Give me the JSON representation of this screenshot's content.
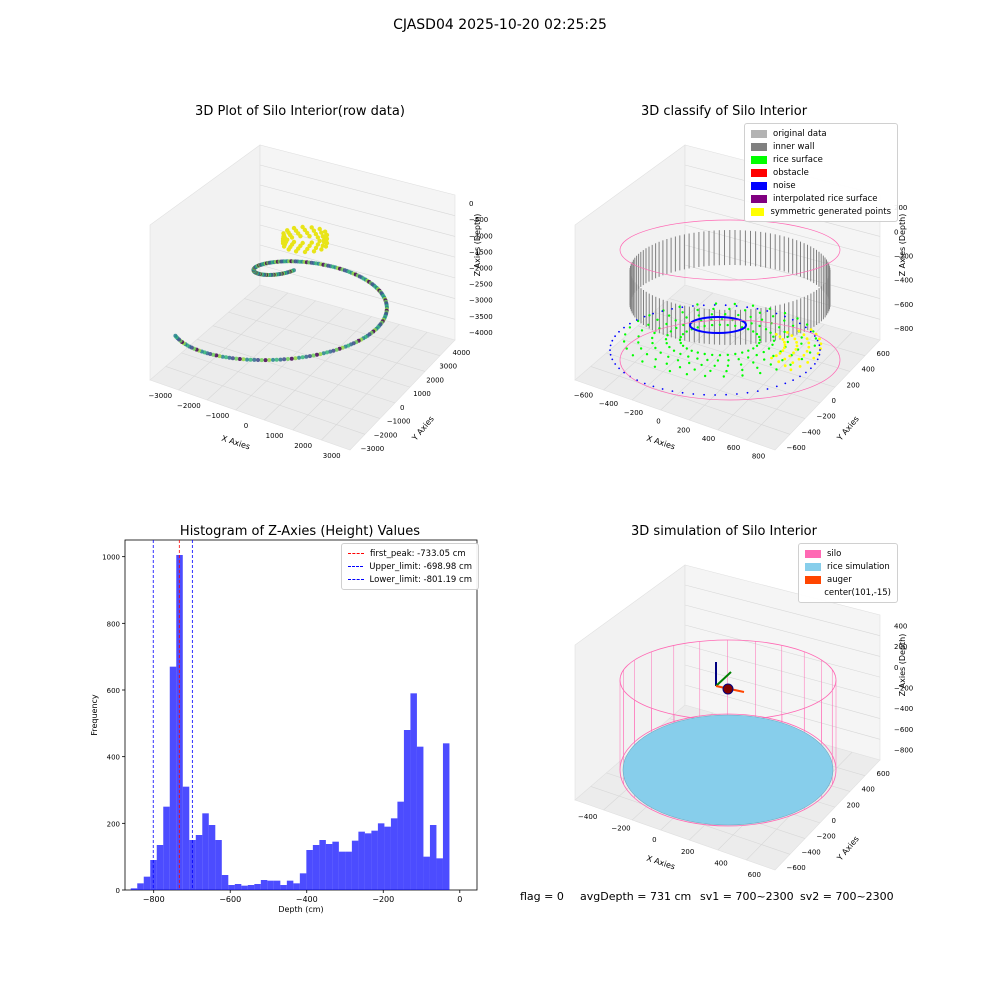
{
  "suptitle": "CJASD04 2025-10-20 02:25:25",
  "footer": {
    "flag": "flag = 0",
    "avgDepth": "avgDepth = 731 cm",
    "sv1": "sv1 = 700~2300",
    "sv2": "sv2 = 700~2300"
  },
  "colors": {
    "histogram": "#0000ff",
    "first_peak": "#ff0000",
    "limits": "#0000ff",
    "silo": "#ff69b4",
    "rice_simulation": "#87ceeb",
    "auger": "#ff4500",
    "original_data": "#b3b3b3",
    "inner_wall": "#808080",
    "rice_surface": "#00ff00",
    "obstacle": "#ff0000",
    "noise": "#0000ff",
    "interpolated_rice_surface": "#800080",
    "symmetric_generated_points": "#ffff00"
  },
  "chart_data": [
    {
      "type": "scatter",
      "title": "3D Plot of Silo Interior(row data)",
      "xlabel": "X Axies",
      "ylabel": "Y Axies",
      "zlabel": "Z Axies (Depth)",
      "xticks": [
        "−3000",
        "−2000",
        "−1000",
        "0",
        "1000",
        "2000",
        "3000"
      ],
      "yticks": [
        "−3000",
        "−2000",
        "−1000",
        "0",
        "1000",
        "2000",
        "3000",
        "4000"
      ],
      "zticks": [
        "0",
        "−500",
        "−1000",
        "−1500",
        "−2000",
        "−2500",
        "−3000",
        "−3500",
        "−4000"
      ],
      "xlim": [
        -3500,
        3500
      ],
      "ylim": [
        -3500,
        4000
      ],
      "zlim": [
        -4200,
        0
      ]
    },
    {
      "type": "scatter",
      "title": "3D classify of Silo Interior",
      "xlabel": "X Axies",
      "ylabel": "Y Axies",
      "zlabel": "Z Axies (Depth)",
      "xticks": [
        "−600",
        "−400",
        "−200",
        "0",
        "200",
        "400",
        "600",
        "800"
      ],
      "yticks": [
        "−600",
        "−400",
        "−200",
        "0",
        "200",
        "400",
        "600"
      ],
      "zticks": [
        "200",
        "0",
        "−200",
        "−400",
        "−600",
        "−800"
      ],
      "legend": [
        "original data",
        "inner wall",
        "rice surface",
        "obstacle",
        "noise",
        "interpolated rice surface",
        "symmetric generated points"
      ],
      "legend_loc": "top-right"
    },
    {
      "type": "bar",
      "title": "Histogram of Z-Axies (Height) Values",
      "xlabel": "Depth (cm)",
      "ylabel": "Frequency",
      "xlim": [
        -875,
        45
      ],
      "ylim": [
        0,
        1050
      ],
      "xticks": [
        -800,
        -600,
        -400,
        -200,
        0
      ],
      "yticks": [
        0,
        200,
        400,
        600,
        800,
        1000
      ],
      "bin_start": -860,
      "bin_width": 17,
      "values": [
        5,
        20,
        40,
        90,
        135,
        250,
        670,
        1005,
        310,
        150,
        165,
        230,
        195,
        150,
        45,
        15,
        18,
        13,
        15,
        18,
        30,
        28,
        28,
        15,
        28,
        20,
        50,
        120,
        135,
        150,
        138,
        145,
        115,
        115,
        148,
        175,
        170,
        178,
        200,
        190,
        215,
        265,
        480,
        590,
        430,
        100,
        195,
        95,
        440
      ],
      "lines": [
        {
          "name": "first_peak: -733.05 cm",
          "x": -733.05,
          "color": "#ff0000"
        },
        {
          "name": "Upper_limit: -698.98 cm",
          "x": -698.98,
          "color": "#0000ff"
        },
        {
          "name": "Lower_limit: -801.19 cm",
          "x": -801.19,
          "color": "#0000ff"
        }
      ],
      "legend_loc": "top-right"
    },
    {
      "type": "scatter",
      "title": "3D simulation of Silo Interior",
      "xlabel": "X Axies",
      "ylabel": "Y Axies",
      "zlabel": "Z Axies (Depth)",
      "xticks": [
        "−400",
        "−200",
        "0",
        "200",
        "400",
        "600"
      ],
      "yticks": [
        "−600",
        "−400",
        "−200",
        "0",
        "200",
        "400",
        "600"
      ],
      "zticks": [
        "400",
        "200",
        "0",
        "−200",
        "−400",
        "−600",
        "−800"
      ],
      "legend": [
        "silo",
        "rice simulation",
        "auger",
        "center(101,-15)"
      ],
      "legend_loc": "top-right"
    }
  ]
}
